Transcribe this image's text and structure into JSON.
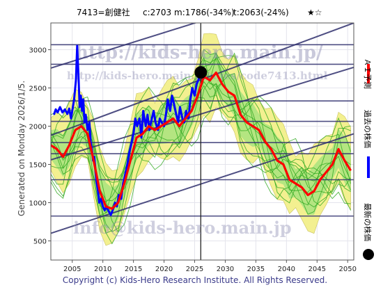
{
  "header": {
    "code_name": "7413=創健社",
    "current": "c:2703",
    "median": "m:1786(-34%)",
    "target": "t:2063(-24%)",
    "stars": "★☆"
  },
  "side_text": "Generated on Monday 2026/1/5.",
  "watermarks": {
    "url_big": "http://kids-hero.main.jp/",
    "url_small": "http://kids-hero.main.jp/ages/code7413.html",
    "email": "info@kids-hero.main.jp"
  },
  "copyright": "Copyright (c) Kids-Hero Research Institute. All Rights Reserved.",
  "legend": [
    {
      "label": "ＡＩ予測",
      "color": "#ff0000"
    },
    {
      "label": "過去の株価",
      "color": "#0000ff"
    },
    {
      "label": "最新の株価",
      "color": "#000000"
    }
  ],
  "colors": {
    "forecast": "#ff0000",
    "past": "#0000ff",
    "green_line": "#33aa22",
    "band": "#f3f090",
    "band_inner": "#9fe27c",
    "navy": "#30306e",
    "grid": "#e4e4ec"
  },
  "chart_data": {
    "type": "line",
    "xlim": [
      2001.5,
      2051.0
    ],
    "ylim": [
      250,
      3350
    ],
    "xticks": [
      2005,
      2010,
      2015,
      2020,
      2025,
      2030,
      2035,
      2040,
      2045,
      2050
    ],
    "yticks": [
      500,
      1000,
      1500,
      2000,
      2500,
      3000
    ],
    "current_marker": {
      "x": 2026.0,
      "y": 2703
    },
    "vertical_line_x": 2026.0,
    "horizontal_lines": [
      825,
      1300,
      1640,
      1786,
      2063,
      2330,
      2810,
      3065
    ],
    "trend_lines": [
      {
        "x1": 2001.5,
        "y1": 600,
        "x2": 2051,
        "y2": 1900
      },
      {
        "x1": 2001.5,
        "y1": 1560,
        "x2": 2051,
        "y2": 2770
      },
      {
        "x1": 2001.5,
        "y1": 1880,
        "x2": 2051,
        "y2": 3350
      },
      {
        "x1": 2001.5,
        "y1": 2760,
        "x2": 2051,
        "y2": 4000
      }
    ],
    "series": [
      {
        "name": "過去の株価",
        "color": "#0000ff",
        "points": [
          [
            2002.0,
            2150
          ],
          [
            2002.3,
            2220
          ],
          [
            2002.6,
            2180
          ],
          [
            2003.0,
            2250
          ],
          [
            2003.4,
            2180
          ],
          [
            2003.8,
            2220
          ],
          [
            2004.2,
            2160
          ],
          [
            2004.5,
            2230
          ],
          [
            2004.8,
            2100
          ],
          [
            2005.0,
            2200
          ],
          [
            2005.3,
            2350
          ],
          [
            2005.6,
            2600
          ],
          [
            2005.8,
            3050
          ],
          [
            2006.0,
            2700
          ],
          [
            2006.2,
            2250
          ],
          [
            2006.4,
            2400
          ],
          [
            2006.6,
            2200
          ],
          [
            2006.8,
            2350
          ],
          [
            2007.0,
            2050
          ],
          [
            2007.2,
            2150
          ],
          [
            2007.5,
            1950
          ],
          [
            2007.8,
            2050
          ],
          [
            2008.0,
            1800
          ],
          [
            2008.2,
            1700
          ],
          [
            2008.4,
            1550
          ],
          [
            2008.6,
            1600
          ],
          [
            2008.8,
            1400
          ],
          [
            2009.0,
            1250
          ],
          [
            2009.2,
            1150
          ],
          [
            2009.4,
            1000
          ],
          [
            2009.7,
            1050
          ],
          [
            2010.0,
            950
          ],
          [
            2010.3,
            900
          ],
          [
            2010.6,
            950
          ],
          [
            2011.0,
            880
          ],
          [
            2011.3,
            840
          ],
          [
            2011.6,
            900
          ],
          [
            2012.0,
            1000
          ],
          [
            2012.3,
            950
          ],
          [
            2012.6,
            1100
          ],
          [
            2013.0,
            1050
          ],
          [
            2013.3,
            1250
          ],
          [
            2013.6,
            1350
          ],
          [
            2014.0,
            1500
          ],
          [
            2014.3,
            1650
          ],
          [
            2014.6,
            1750
          ],
          [
            2015.0,
            1900
          ],
          [
            2015.3,
            2100
          ],
          [
            2015.6,
            2000
          ],
          [
            2016.0,
            2100
          ],
          [
            2016.3,
            1850
          ],
          [
            2016.6,
            2200
          ],
          [
            2017.0,
            2000
          ],
          [
            2017.3,
            2150
          ],
          [
            2017.6,
            1950
          ],
          [
            2018.0,
            2100
          ],
          [
            2018.3,
            2200
          ],
          [
            2018.6,
            2050
          ],
          [
            2019.0,
            1950
          ],
          [
            2019.3,
            2100
          ],
          [
            2019.6,
            2050
          ],
          [
            2020.0,
            2000
          ],
          [
            2020.3,
            2150
          ],
          [
            2020.6,
            2350
          ],
          [
            2021.0,
            2200
          ],
          [
            2021.3,
            2400
          ],
          [
            2021.6,
            2300
          ],
          [
            2022.0,
            2150
          ],
          [
            2022.3,
            2050
          ],
          [
            2022.6,
            2250
          ],
          [
            2023.0,
            2100
          ],
          [
            2023.3,
            2050
          ],
          [
            2023.6,
            2200
          ],
          [
            2024.0,
            2100
          ],
          [
            2024.3,
            2350
          ],
          [
            2024.6,
            2500
          ],
          [
            2025.0,
            2400
          ],
          [
            2025.3,
            2550
          ],
          [
            2025.6,
            2600
          ],
          [
            2026.0,
            2703
          ]
        ]
      },
      {
        "name": "ＡＩ予測",
        "color": "#ff0000",
        "points": [
          [
            2001.5,
            1750
          ],
          [
            2002.5,
            1700
          ],
          [
            2003.5,
            1600
          ],
          [
            2004.5,
            1750
          ],
          [
            2005.5,
            1950
          ],
          [
            2006.5,
            2000
          ],
          [
            2007.5,
            1900
          ],
          [
            2008.5,
            1550
          ],
          [
            2009.5,
            1150
          ],
          [
            2010.5,
            950
          ],
          [
            2011.5,
            920
          ],
          [
            2012.5,
            1000
          ],
          [
            2013.5,
            1250
          ],
          [
            2014.5,
            1550
          ],
          [
            2015.5,
            1850
          ],
          [
            2016.5,
            1900
          ],
          [
            2017.5,
            2000
          ],
          [
            2018.5,
            1950
          ],
          [
            2019.5,
            2000
          ],
          [
            2020.5,
            2050
          ],
          [
            2021.5,
            2100
          ],
          [
            2022.5,
            2000
          ],
          [
            2023.5,
            2100
          ],
          [
            2024.5,
            2200
          ],
          [
            2025.5,
            2400
          ],
          [
            2026.5,
            2650
          ],
          [
            2027.5,
            2600
          ],
          [
            2028.5,
            2700
          ],
          [
            2029.5,
            2550
          ],
          [
            2030.5,
            2450
          ],
          [
            2031.5,
            2400
          ],
          [
            2032.5,
            2150
          ],
          [
            2033.5,
            2050
          ],
          [
            2034.5,
            2000
          ],
          [
            2035.5,
            1950
          ],
          [
            2036.5,
            1800
          ],
          [
            2037.5,
            1700
          ],
          [
            2038.5,
            1550
          ],
          [
            2039.5,
            1500
          ],
          [
            2040.5,
            1300
          ],
          [
            2041.5,
            1250
          ],
          [
            2042.5,
            1200
          ],
          [
            2043.5,
            1100
          ],
          [
            2044.5,
            1150
          ],
          [
            2045.5,
            1300
          ],
          [
            2046.5,
            1400
          ],
          [
            2047.5,
            1500
          ],
          [
            2048.5,
            1700
          ],
          [
            2049.5,
            1550
          ],
          [
            2050.5,
            1420
          ]
        ]
      }
    ]
  }
}
